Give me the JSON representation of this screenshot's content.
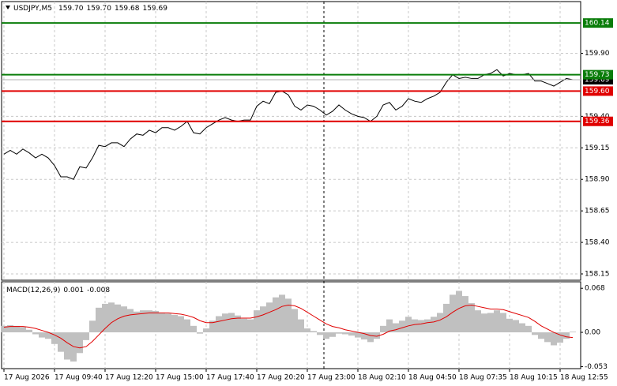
{
  "chart_data": [
    {
      "type": "line",
      "title": "USDJPY,M5",
      "ohlc": {
        "values": [
          159.7,
          159.7,
          159.68,
          159.69
        ],
        "value_labels": [
          "159.70",
          "159.70",
          "159.68",
          "159.69"
        ]
      },
      "categories": [
        "17 Aug 2026",
        null,
        null,
        null,
        null,
        null,
        null,
        null,
        "17 Aug 09:40",
        null,
        null,
        null,
        null,
        null,
        null,
        null,
        "17 Aug 12:20",
        null,
        null,
        null,
        null,
        null,
        null,
        null,
        "17 Aug 15:00",
        null,
        null,
        null,
        null,
        null,
        null,
        null,
        "17 Aug 17:40",
        null,
        null,
        null,
        null,
        null,
        null,
        null,
        "17 Aug 20:20",
        null,
        null,
        null,
        null,
        null,
        null,
        null,
        "17 Aug 23:00",
        null,
        null,
        null,
        null,
        null,
        null,
        null,
        "18 Aug 02:10",
        null,
        null,
        null,
        null,
        null,
        null,
        null,
        "18 Aug 04:50",
        null,
        null,
        null,
        null,
        null,
        null,
        null,
        "18 Aug 07:35",
        null,
        null,
        null,
        null,
        null,
        null,
        null,
        "18 Aug 10:15",
        null,
        null,
        null,
        null,
        null,
        null,
        null,
        "18 Aug 12:55",
        null,
        null
      ],
      "series": [
        {
          "color": "#000000",
          "values": [
            159.1,
            159.13,
            159.1,
            159.14,
            159.11,
            159.07,
            159.1,
            159.07,
            159.01,
            158.92,
            158.92,
            158.9,
            159.0,
            158.99,
            159.07,
            159.17,
            159.16,
            159.19,
            159.19,
            159.16,
            159.22,
            159.26,
            159.25,
            159.29,
            159.27,
            159.31,
            159.31,
            159.29,
            159.32,
            159.36,
            159.27,
            159.26,
            159.31,
            159.34,
            159.37,
            159.39,
            159.37,
            159.36,
            159.37,
            159.37,
            159.48,
            159.52,
            159.5,
            159.59,
            159.6,
            159.57,
            159.48,
            159.45,
            159.49,
            159.48,
            159.45,
            159.41,
            159.44,
            159.49,
            159.45,
            159.42,
            159.4,
            159.39,
            159.36,
            159.4,
            159.49,
            159.51,
            159.45,
            159.48,
            159.54,
            159.52,
            159.51,
            159.54,
            159.56,
            159.59,
            159.67,
            159.73,
            159.7,
            159.71,
            159.7,
            159.7,
            159.73,
            159.74,
            159.77,
            159.72,
            159.74,
            159.73,
            159.73,
            159.74,
            159.68,
            159.68,
            159.66,
            159.64,
            159.67,
            159.7,
            159.69
          ]
        }
      ],
      "levels": {
        "values": [
          160.14,
          159.73,
          159.6,
          159.36
        ],
        "value_labels": [
          "160.14",
          "159.73",
          "159.60",
          "159.36"
        ],
        "colors": [
          "#0a7d0a",
          "#0a7d0a",
          "#e00000",
          "#e00000"
        ]
      },
      "last_price": 159.69,
      "ylim": [
        158.1,
        160.31
      ],
      "yticks": [
        {
          "value": 158.15,
          "label": "158.15"
        },
        {
          "value": 158.4,
          "label": "158.40"
        },
        {
          "value": 158.65,
          "label": "158.65"
        },
        {
          "value": 158.9,
          "label": "158.90"
        },
        {
          "value": 159.15,
          "label": "159.15"
        },
        {
          "value": 159.4,
          "label": "159.40"
        },
        {
          "value": 159.9,
          "label": "159.90"
        }
      ],
      "grid": true
    },
    {
      "type": "macd",
      "title": "MACD(12,26,9)",
      "readout": [
        0.001,
        -0.008
      ],
      "series": [
        {
          "style": "histogram",
          "color": "#c0c0c0",
          "values": [
            0.01,
            0.011,
            0.01,
            0.008,
            0.004,
            -0.003,
            -0.008,
            -0.01,
            -0.018,
            -0.03,
            -0.042,
            -0.045,
            -0.032,
            -0.012,
            0.018,
            0.038,
            0.044,
            0.046,
            0.043,
            0.04,
            0.036,
            0.032,
            0.034,
            0.034,
            0.033,
            0.03,
            0.029,
            0.027,
            0.025,
            0.02,
            0.01,
            -0.002,
            0.006,
            0.018,
            0.025,
            0.029,
            0.03,
            0.026,
            0.021,
            0.02,
            0.034,
            0.04,
            0.046,
            0.054,
            0.058,
            0.052,
            0.036,
            0.02,
            0.006,
            0.002,
            -0.004,
            -0.01,
            -0.007,
            -0.002,
            -0.003,
            -0.005,
            -0.008,
            -0.011,
            -0.015,
            -0.01,
            0.01,
            0.02,
            0.014,
            0.018,
            0.024,
            0.02,
            0.019,
            0.02,
            0.024,
            0.03,
            0.044,
            0.058,
            0.064,
            0.056,
            0.045,
            0.034,
            0.029,
            0.03,
            0.034,
            0.03,
            0.021,
            0.019,
            0.014,
            0.01,
            -0.004,
            -0.01,
            -0.015,
            -0.02,
            -0.016,
            -0.01,
            0.001
          ]
        },
        {
          "style": "line",
          "color": "#e00000",
          "values": [
            0.008,
            0.009,
            0.009,
            0.009,
            0.008,
            0.006,
            0.003,
            0.0,
            -0.004,
            -0.009,
            -0.016,
            -0.022,
            -0.024,
            -0.022,
            -0.014,
            -0.004,
            0.006,
            0.015,
            0.021,
            0.025,
            0.027,
            0.028,
            0.029,
            0.03,
            0.03,
            0.03,
            0.03,
            0.029,
            0.028,
            0.026,
            0.023,
            0.018,
            0.015,
            0.015,
            0.017,
            0.019,
            0.021,
            0.022,
            0.022,
            0.022,
            0.024,
            0.027,
            0.031,
            0.035,
            0.04,
            0.042,
            0.041,
            0.037,
            0.031,
            0.025,
            0.019,
            0.013,
            0.009,
            0.007,
            0.004,
            0.002,
            0.0,
            -0.002,
            -0.005,
            -0.006,
            -0.003,
            0.002,
            0.004,
            0.007,
            0.01,
            0.012,
            0.013,
            0.015,
            0.016,
            0.019,
            0.024,
            0.031,
            0.037,
            0.041,
            0.042,
            0.04,
            0.038,
            0.036,
            0.036,
            0.035,
            0.032,
            0.029,
            0.026,
            0.023,
            0.017,
            0.01,
            0.005,
            0.0,
            -0.004,
            -0.007,
            -0.008
          ]
        }
      ],
      "ylim": [
        -0.056,
        0.078
      ],
      "yticks": [
        -0.053,
        {
          "value": 0,
          "label": "0.00"
        },
        0.068
      ]
    }
  ]
}
